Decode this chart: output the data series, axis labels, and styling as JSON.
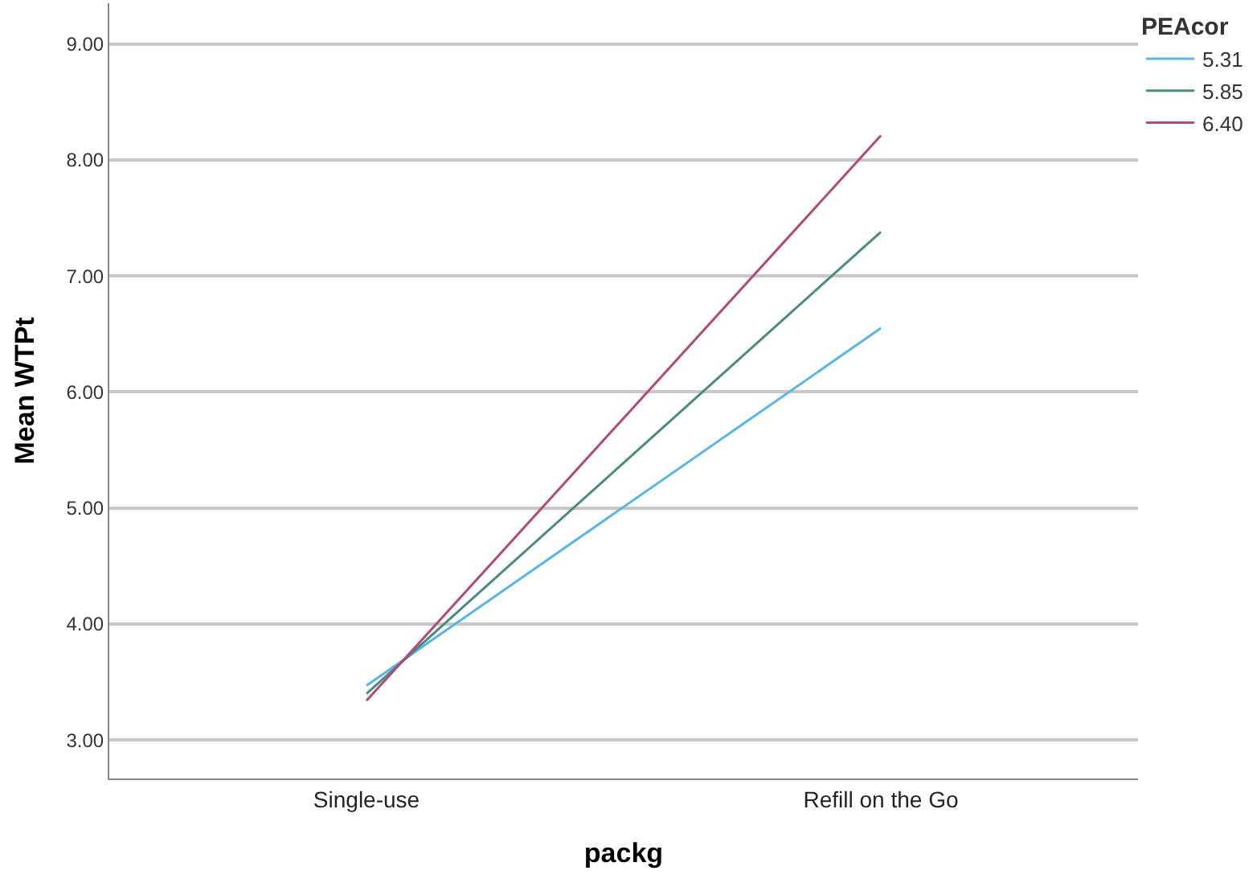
{
  "chart_data": {
    "type": "line",
    "xlabel": "packg",
    "ylabel": "Mean WTPt",
    "legend_title": "PEAcor",
    "categories": [
      "Single-use",
      "Refill on the Go"
    ],
    "series": [
      {
        "name": "5.31",
        "color": "#5ab4e8",
        "values": [
          3.47,
          6.55
        ]
      },
      {
        "name": "5.85",
        "color": "#4a8a80",
        "values": [
          3.4,
          7.38
        ]
      },
      {
        "name": "6.40",
        "color": "#b04a78",
        "values": [
          3.34,
          8.21
        ]
      }
    ],
    "ylim": [
      2.67,
      9.35
    ],
    "yticks": [
      {
        "value": 3,
        "label": "3.00"
      },
      {
        "value": 4,
        "label": "4.00"
      },
      {
        "value": 5,
        "label": "5.00"
      },
      {
        "value": 6,
        "label": "6.00"
      },
      {
        "value": 7,
        "label": "7.00"
      },
      {
        "value": 8,
        "label": "8.00"
      },
      {
        "value": 9,
        "label": "9.00"
      }
    ],
    "grid": "y",
    "legend": "top right",
    "marker": "none",
    "line_style": "solid"
  }
}
